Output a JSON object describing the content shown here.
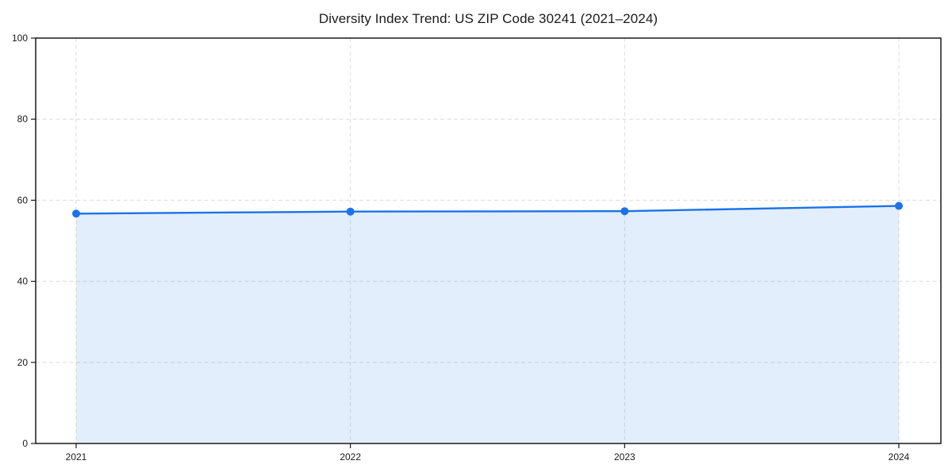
{
  "chart_data": {
    "type": "area",
    "title": "Diversity Index Trend: US ZIP Code 30241 (2021–2024)",
    "x": [
      "2021",
      "2022",
      "2023",
      "2024"
    ],
    "series": [
      {
        "name": "Diversity Index",
        "values": [
          56.7,
          57.2,
          57.3,
          58.6
        ]
      }
    ],
    "xlabel": "",
    "ylabel": "",
    "ylim": [
      0,
      100
    ],
    "yticks": [
      0,
      20,
      40,
      60,
      80,
      100
    ],
    "grid": "dashed, horizontal and vertical",
    "legend": "none",
    "colors": {
      "line": "#1a73e8",
      "marker": "#1a73e8",
      "area_fill": "rgba(26,115,232,0.12)",
      "grid": "#dcdcdc",
      "axis": "#1a1a1a",
      "text": "#1a1a1a",
      "background": "#ffffff"
    }
  }
}
